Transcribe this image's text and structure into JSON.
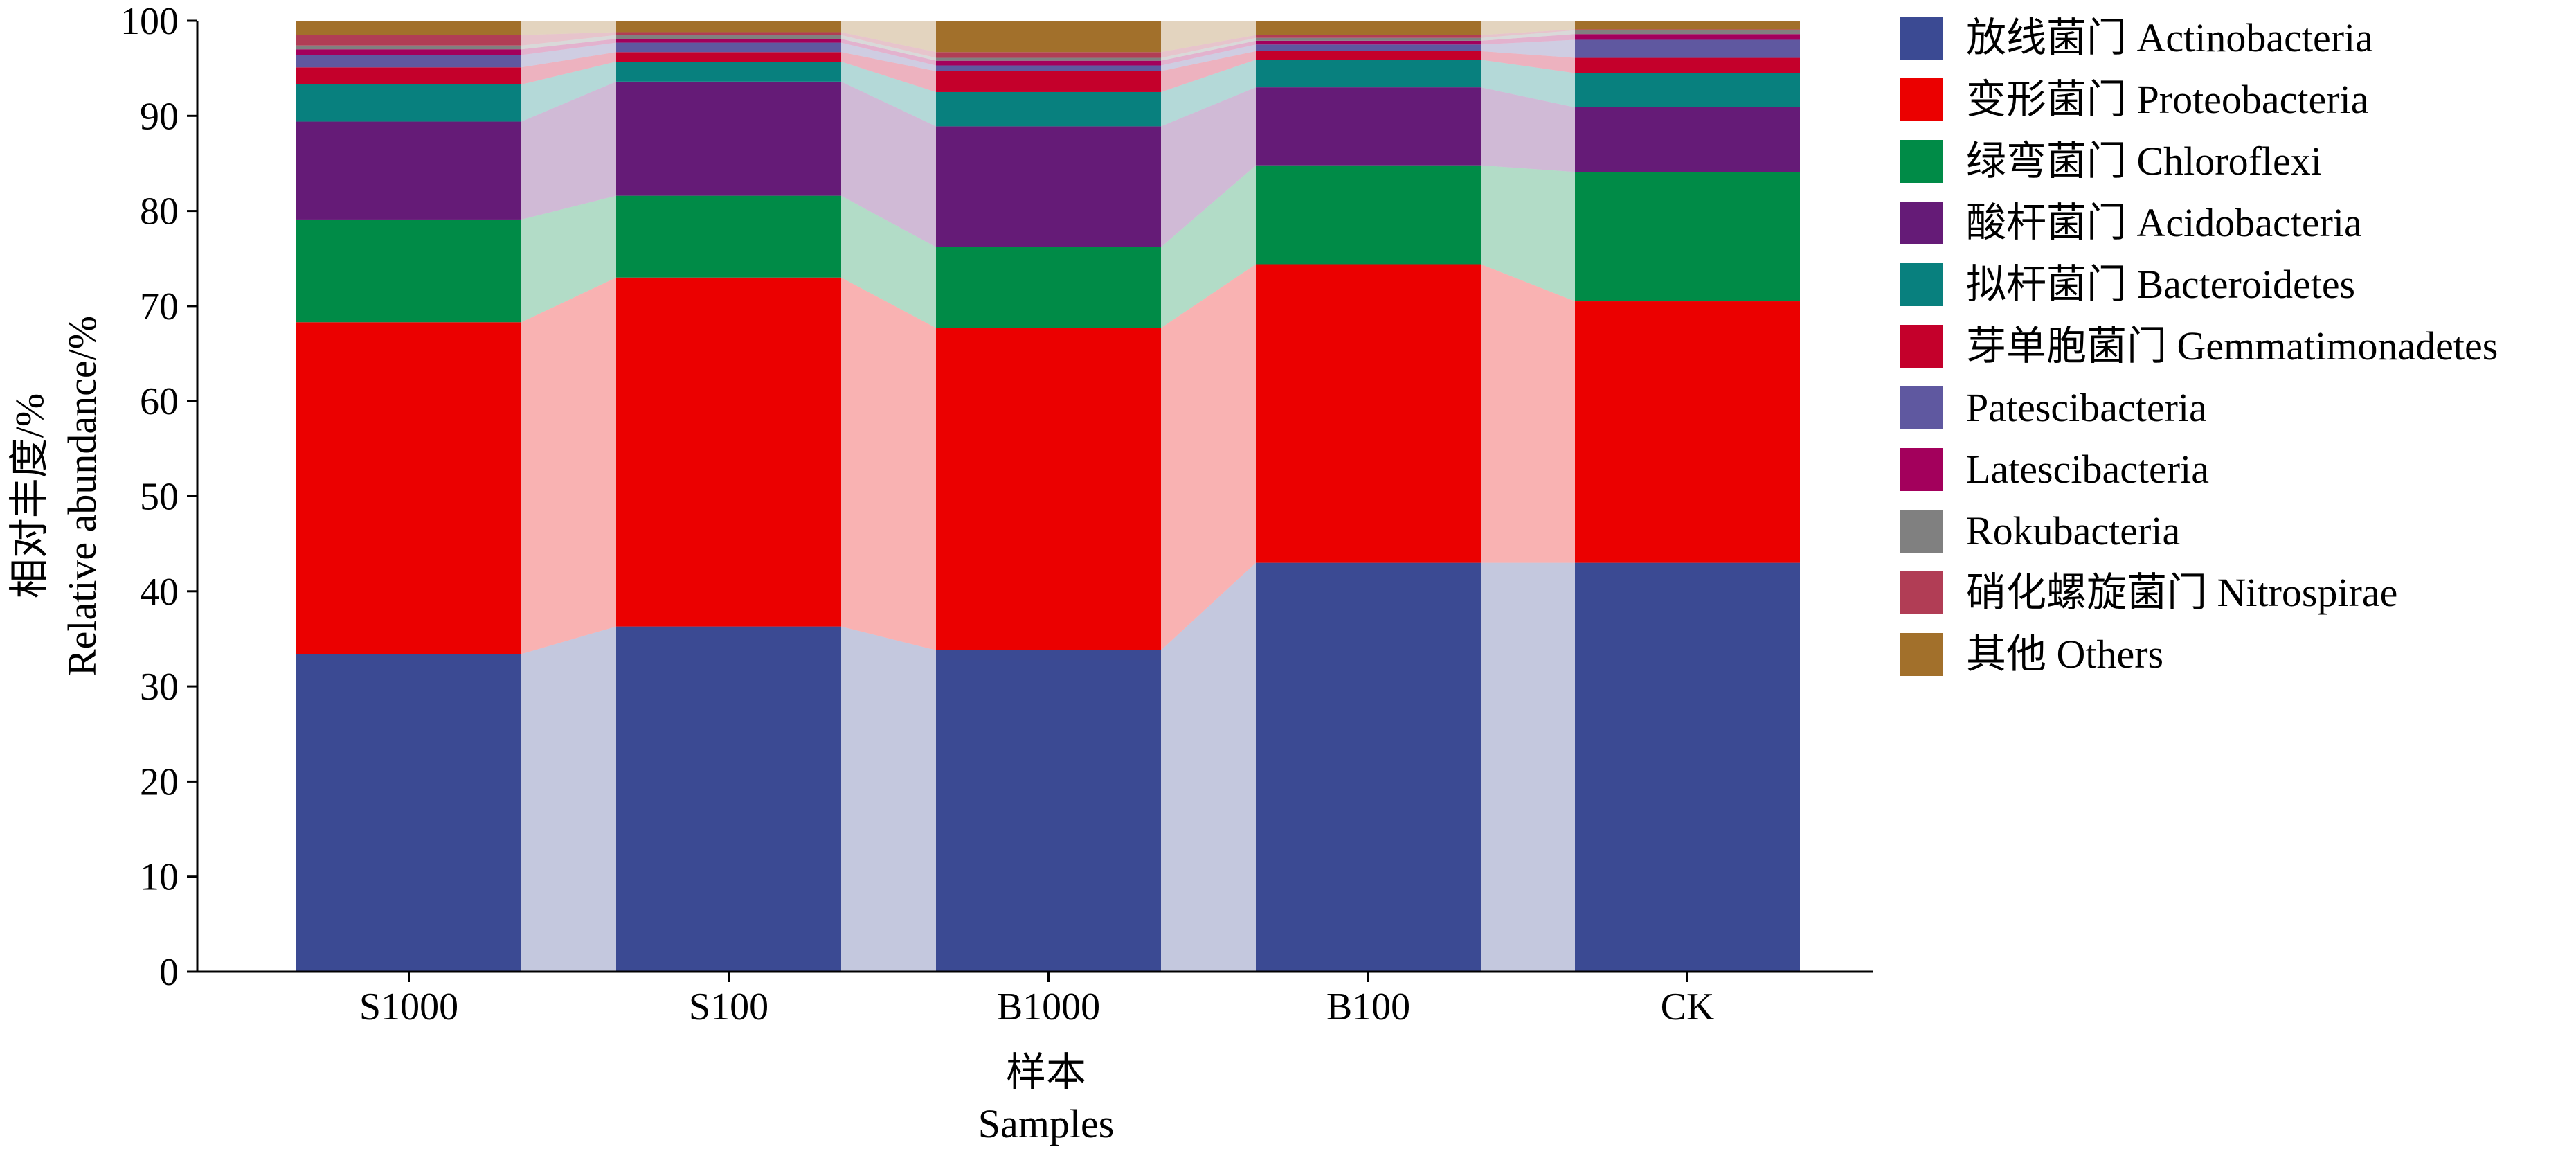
{
  "chart_data": {
    "type": "bar",
    "stacked": true,
    "xlabel_cn": "样本",
    "xlabel_en": "Samples",
    "ylabel_cn": "相对丰度/%",
    "ylabel_en": "Relative abundance/%",
    "ylim": [
      0,
      100
    ],
    "yticks": [
      0,
      10,
      20,
      30,
      40,
      50,
      60,
      70,
      80,
      90,
      100
    ],
    "categories": [
      "S1000",
      "S100",
      "B1000",
      "B100",
      "CK"
    ],
    "legend_position": "right",
    "series": [
      {
        "name": "放线菌门 Actinobacteria",
        "color": "#3b4a93",
        "values": [
          33.4,
          36.3,
          33.8,
          43.0,
          43.0
        ]
      },
      {
        "name": "变形菌门 Proteobacteria",
        "color": "#eb0000",
        "values": [
          34.9,
          36.7,
          33.9,
          31.4,
          27.5
        ]
      },
      {
        "name": "绿弯菌门 Chloroflexi",
        "color": "#008b47",
        "values": [
          10.8,
          8.6,
          8.5,
          10.4,
          13.6
        ]
      },
      {
        "name": "酸杆菌门 Acidobacteria",
        "color": "#651b77",
        "values": [
          10.3,
          12.0,
          12.7,
          8.2,
          6.8
        ]
      },
      {
        "name": "拟杆菌门 Bacteroidetes",
        "color": "#08807e",
        "values": [
          3.9,
          2.1,
          3.6,
          2.9,
          3.6
        ]
      },
      {
        "name": "芽单胞菌门 Gemmatimonadetes",
        "color": "#c4002b",
        "values": [
          1.8,
          1.0,
          2.2,
          0.9,
          1.6
        ]
      },
      {
        "name": "Patescibacteria",
        "color": "#5f58a0",
        "values": [
          1.3,
          1.0,
          0.6,
          0.7,
          1.9
        ]
      },
      {
        "name": "Latescibacteria",
        "color": "#a3005c",
        "values": [
          0.6,
          0.4,
          0.5,
          0.4,
          0.6
        ]
      },
      {
        "name": "Rokubacteria",
        "color": "#808080",
        "values": [
          0.4,
          0.4,
          0.3,
          0.3,
          0.4
        ]
      },
      {
        "name": "硝化螺旋菌门 Nitrospirae",
        "color": "#b13d55",
        "values": [
          1.1,
          0.3,
          0.6,
          0.3,
          0.1
        ]
      },
      {
        "name": "其他 Others",
        "color": "#a2702b",
        "values": [
          1.5,
          1.2,
          3.3,
          1.5,
          0.9
        ]
      }
    ]
  }
}
